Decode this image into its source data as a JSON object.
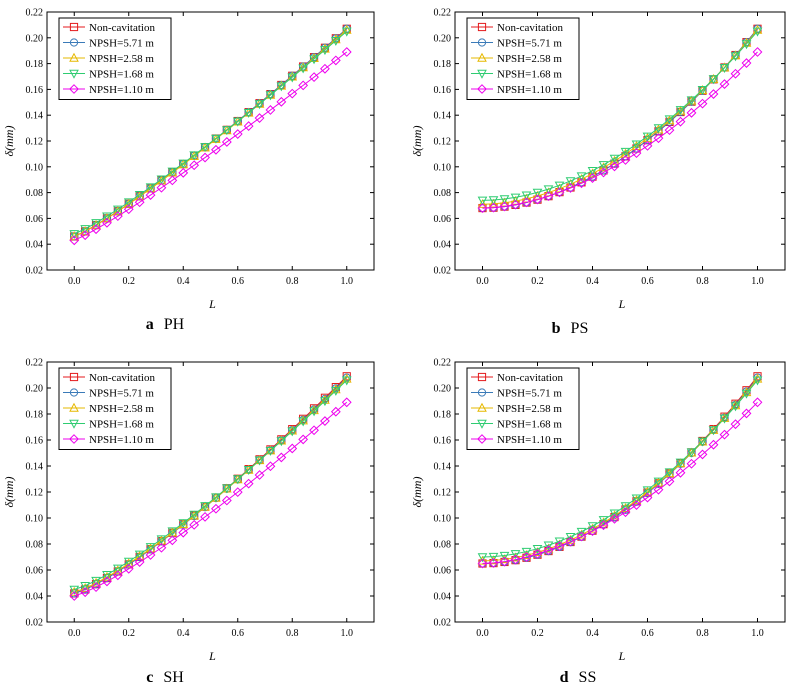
{
  "chart_data": [
    {
      "type": "line",
      "panel": "a",
      "caption_letter": "a",
      "caption_text": "PH",
      "xlabel": "L",
      "ylabel": "δ(mm)",
      "xlim": [
        -0.1,
        1.1
      ],
      "ylim": [
        0.02,
        0.22
      ],
      "xticks": [
        "0.0",
        "0.2",
        "0.4",
        "0.6",
        "0.8",
        "1.0"
      ],
      "yticks": [
        "0.02",
        "0.04",
        "0.06",
        "0.08",
        "0.10",
        "0.12",
        "0.14",
        "0.16",
        "0.18",
        "0.20",
        "0.22"
      ],
      "legend": "top-left",
      "grid": false,
      "series": [
        {
          "name": "Non-cavitation",
          "y0": 0.046,
          "y1": 0.207,
          "p": 1.15
        },
        {
          "name": "NPSH=5.71 m",
          "y0": 0.046,
          "y1": 0.207,
          "p": 1.15
        },
        {
          "name": "NPSH=2.58 m",
          "y0": 0.046,
          "y1": 0.206,
          "p": 1.15
        },
        {
          "name": "NPSH=1.68 m",
          "y0": 0.048,
          "y1": 0.205,
          "p": 1.15
        },
        {
          "name": "NPSH=1.10 m",
          "y0": 0.043,
          "y1": 0.189,
          "p": 1.12
        }
      ]
    },
    {
      "type": "line",
      "panel": "b",
      "caption_letter": "b",
      "caption_text": "PS",
      "xlabel": "L",
      "ylabel": "δ(mm)",
      "xlim": [
        -0.1,
        1.1
      ],
      "ylim": [
        0.02,
        0.22
      ],
      "xticks": [
        "0.0",
        "0.2",
        "0.4",
        "0.6",
        "0.8",
        "1.0"
      ],
      "yticks": [
        "0.02",
        "0.04",
        "0.06",
        "0.08",
        "0.10",
        "0.12",
        "0.14",
        "0.16",
        "0.18",
        "0.20",
        "0.22"
      ],
      "legend": "top-left",
      "grid": false,
      "series": [
        {
          "name": "Non-cavitation",
          "y0": 0.068,
          "y1": 0.207,
          "p": 1.9
        },
        {
          "name": "NPSH=5.71 m",
          "y0": 0.068,
          "y1": 0.207,
          "p": 1.9
        },
        {
          "name": "NPSH=2.58 m",
          "y0": 0.071,
          "y1": 0.206,
          "p": 1.9
        },
        {
          "name": "NPSH=1.68 m",
          "y0": 0.074,
          "y1": 0.205,
          "p": 1.9
        },
        {
          "name": "NPSH=1.10 m",
          "y0": 0.068,
          "y1": 0.189,
          "p": 1.8
        }
      ]
    },
    {
      "type": "line",
      "panel": "c",
      "caption_letter": "c",
      "caption_text": "SH",
      "xlabel": "L",
      "ylabel": "δ(mm)",
      "xlim": [
        -0.1,
        1.1
      ],
      "ylim": [
        0.02,
        0.22
      ],
      "xticks": [
        "0.0",
        "0.2",
        "0.4",
        "0.6",
        "0.8",
        "1.0"
      ],
      "yticks": [
        "0.02",
        "0.04",
        "0.06",
        "0.08",
        "0.10",
        "0.12",
        "0.14",
        "0.16",
        "0.18",
        "0.20",
        "0.22"
      ],
      "legend": "top-left",
      "grid": false,
      "series": [
        {
          "name": "Non-cavitation",
          "y0": 0.042,
          "y1": 0.209,
          "p": 1.25
        },
        {
          "name": "NPSH=5.71 m",
          "y0": 0.042,
          "y1": 0.208,
          "p": 1.25
        },
        {
          "name": "NPSH=2.58 m",
          "y0": 0.043,
          "y1": 0.207,
          "p": 1.25
        },
        {
          "name": "NPSH=1.68 m",
          "y0": 0.045,
          "y1": 0.206,
          "p": 1.25
        },
        {
          "name": "NPSH=1.10 m",
          "y0": 0.04,
          "y1": 0.189,
          "p": 1.22
        }
      ]
    },
    {
      "type": "line",
      "panel": "d",
      "caption_letter": "d",
      "caption_text": "SS",
      "xlabel": "L",
      "ylabel": "δ(mm)",
      "xlim": [
        -0.1,
        1.1
      ],
      "ylim": [
        0.02,
        0.22
      ],
      "xticks": [
        "0.0",
        "0.2",
        "0.4",
        "0.6",
        "0.8",
        "1.0"
      ],
      "yticks": [
        "0.02",
        "0.04",
        "0.06",
        "0.08",
        "0.10",
        "0.12",
        "0.14",
        "0.16",
        "0.18",
        "0.20",
        "0.22"
      ],
      "legend": "top-left",
      "grid": false,
      "series": [
        {
          "name": "Non-cavitation",
          "y0": 0.065,
          "y1": 0.209,
          "p": 1.9
        },
        {
          "name": "NPSH=5.71 m",
          "y0": 0.065,
          "y1": 0.208,
          "p": 1.9
        },
        {
          "name": "NPSH=2.58 m",
          "y0": 0.067,
          "y1": 0.207,
          "p": 1.9
        },
        {
          "name": "NPSH=1.68 m",
          "y0": 0.07,
          "y1": 0.206,
          "p": 1.9
        },
        {
          "name": "NPSH=1.10 m",
          "y0": 0.065,
          "y1": 0.189,
          "p": 1.75
        }
      ]
    }
  ],
  "series_style": [
    {
      "color": "#e41a1c",
      "marker": "square"
    },
    {
      "color": "#3a7ab8",
      "marker": "circle"
    },
    {
      "color": "#e6b800",
      "marker": "triangle-up"
    },
    {
      "color": "#2ecc71",
      "marker": "triangle-down"
    },
    {
      "color": "#ee00ee",
      "marker": "diamond"
    }
  ],
  "x_sample": {
    "start": 0.0,
    "end": 1.0,
    "step": 0.04
  }
}
